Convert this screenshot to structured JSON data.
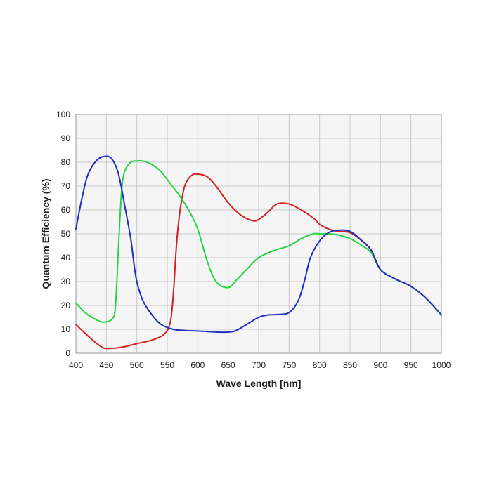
{
  "chart_data": {
    "type": "line",
    "xlabel": "Wave Length [nm]",
    "ylabel": "Quantum Efficiency (%)",
    "xlim": [
      400,
      1000
    ],
    "ylim": [
      0,
      100
    ],
    "x_ticks": [
      400,
      450,
      500,
      550,
      600,
      650,
      700,
      750,
      800,
      850,
      900,
      950,
      1000
    ],
    "y_ticks": [
      0,
      10,
      20,
      30,
      40,
      50,
      60,
      70,
      80,
      90,
      100
    ],
    "x_tick_labels": [
      "400",
      "450",
      "500",
      "550",
      "600",
      "650",
      "700",
      "750",
      "800",
      "850",
      "900",
      "950",
      "1000"
    ],
    "y_tick_labels": [
      "0",
      "10",
      "20",
      "30",
      "40",
      "50",
      "60",
      "70",
      "80",
      "90",
      "100"
    ],
    "grid": true,
    "legend": "none",
    "series": [
      {
        "color": "#d42020",
        "x": [
          400,
          425,
          440,
          450,
          475,
          500,
          525,
          545,
          555,
          560,
          565,
          570,
          575,
          580,
          590,
          600,
          615,
          630,
          650,
          670,
          690,
          700,
          715,
          730,
          750,
          770,
          790,
          800,
          815,
          830,
          850,
          870,
          885,
          900,
          925,
          950,
          975,
          1000
        ],
        "y": [
          12,
          6,
          3,
          2,
          2.5,
          4,
          5.5,
          8,
          13,
          25,
          45,
          58,
          66,
          71,
          74.5,
          75,
          74,
          70,
          63,
          58,
          55.5,
          56,
          59,
          62.5,
          62.5,
          60,
          56.5,
          54,
          52,
          51,
          50.5,
          47,
          43,
          35,
          31,
          28,
          23,
          16
        ]
      },
      {
        "color": "#27d441",
        "x": [
          400,
          415,
          430,
          445,
          460,
          465,
          470,
          475,
          480,
          490,
          500,
          510,
          525,
          540,
          555,
          570,
          585,
          600,
          615,
          630,
          650,
          665,
          680,
          700,
          725,
          750,
          770,
          790,
          800,
          815,
          830,
          850,
          870,
          885,
          900,
          925,
          950,
          975,
          1000
        ],
        "y": [
          21,
          17,
          14.5,
          13,
          14.5,
          20,
          45,
          68,
          76,
          80,
          80.5,
          80.5,
          79,
          76,
          71,
          66,
          60,
          52,
          39,
          30,
          27.5,
          31,
          35,
          40,
          43,
          45,
          48,
          50,
          50,
          50,
          49.5,
          48,
          45,
          42,
          35,
          31,
          28,
          23,
          16
        ]
      },
      {
        "color": "#1f2fbf",
        "x": [
          400,
          410,
          420,
          435,
          450,
          460,
          470,
          480,
          490,
          495,
          500,
          510,
          525,
          540,
          560,
          580,
          600,
          620,
          640,
          660,
          680,
          700,
          715,
          730,
          750,
          765,
          775,
          785,
          800,
          815,
          830,
          850,
          870,
          885,
          900,
          925,
          950,
          975,
          1000
        ],
        "y": [
          52,
          65,
          75,
          81,
          82.5,
          81,
          75,
          62,
          48,
          38,
          30,
          22,
          16,
          12,
          10,
          9.5,
          9.3,
          9,
          8.8,
          9.2,
          12,
          15,
          16,
          16.2,
          17,
          22,
          30,
          40,
          47,
          50.5,
          51.5,
          51,
          47,
          43,
          35,
          31,
          28,
          23,
          16
        ]
      }
    ]
  }
}
